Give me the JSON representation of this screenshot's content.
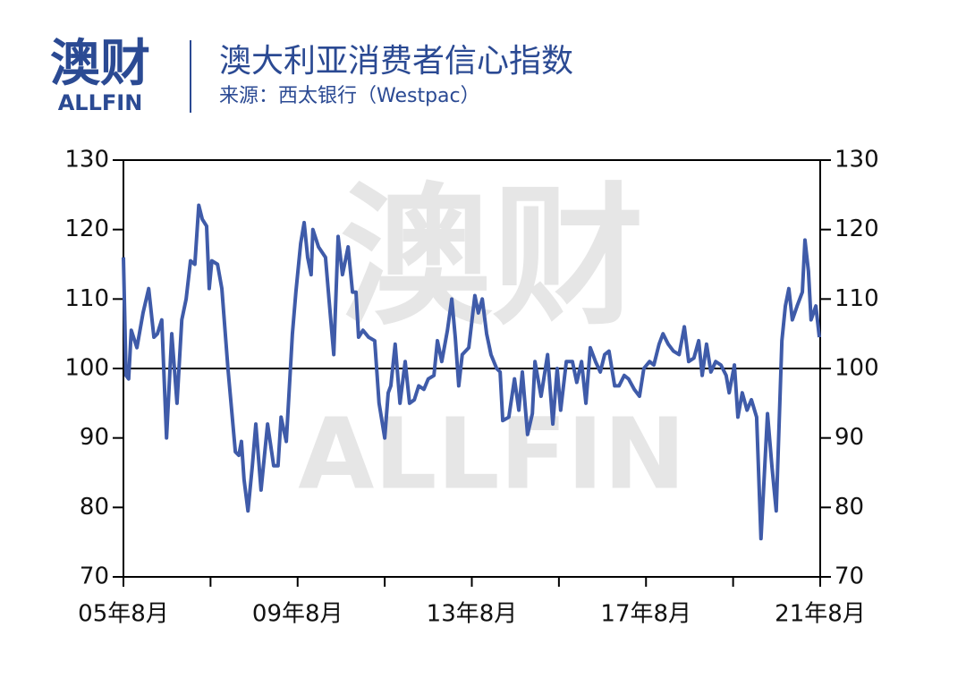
{
  "logo": {
    "name": "澳财",
    "sub": "ALLFIN"
  },
  "chart_data": {
    "type": "line",
    "title": "澳大利亚消费者信心指数",
    "subtitle": "来源：西太银行（Westpac）",
    "x": [
      2005.58,
      2005.64,
      2005.7,
      2005.76,
      2005.89,
      2006.03,
      2006.16,
      2006.28,
      2006.36,
      2006.46,
      2006.57,
      2006.69,
      2006.81,
      2006.92,
      2007.02,
      2007.12,
      2007.22,
      2007.31,
      2007.39,
      2007.49,
      2007.55,
      2007.61,
      2007.74,
      2007.84,
      2007.98,
      2008.15,
      2008.23,
      2008.29,
      2008.35,
      2008.44,
      2008.54,
      2008.62,
      2008.74,
      2008.89,
      2009.03,
      2009.13,
      2009.2,
      2009.32,
      2009.46,
      2009.54,
      2009.65,
      2009.73,
      2009.81,
      2009.89,
      2009.93,
      2010.06,
      2010.22,
      2010.3,
      2010.41,
      2010.51,
      2010.61,
      2010.74,
      2010.84,
      2010.92,
      2010.98,
      2011.08,
      2011.21,
      2011.35,
      2011.45,
      2011.58,
      2011.66,
      2011.72,
      2011.82,
      2011.93,
      2012.05,
      2012.15,
      2012.26,
      2012.36,
      2012.48,
      2012.58,
      2012.71,
      2012.79,
      2012.89,
      2013.02,
      2013.12,
      2013.2,
      2013.28,
      2013.36,
      2013.51,
      2013.65,
      2013.73,
      2013.82,
      2013.92,
      2014.02,
      2014.15,
      2014.23,
      2014.29,
      2014.43,
      2014.56,
      2014.66,
      2014.74,
      2014.86,
      2014.97,
      2015.03,
      2015.17,
      2015.32,
      2015.44,
      2015.54,
      2015.62,
      2015.75,
      2015.89,
      2015.99,
      2016.1,
      2016.2,
      2016.3,
      2016.42,
      2016.53,
      2016.63,
      2016.73,
      2016.86,
      2016.96,
      2017.08,
      2017.18,
      2017.31,
      2017.43,
      2017.53,
      2017.66,
      2017.76,
      2017.88,
      2017.97,
      2018.09,
      2018.21,
      2018.34,
      2018.46,
      2018.56,
      2018.68,
      2018.79,
      2018.87,
      2018.97,
      2019.07,
      2019.18,
      2019.3,
      2019.42,
      2019.49,
      2019.61,
      2019.69,
      2019.79,
      2019.9,
      2020.0,
      2020.12,
      2020.22,
      2020.37,
      2020.47,
      2020.57,
      2020.7,
      2020.78,
      2020.86,
      2020.94,
      2021.05,
      2021.17,
      2021.23,
      2021.31,
      2021.37,
      2021.48,
      2021.56
    ],
    "series": [
      {
        "color": "#3f5ba9",
        "values": [
          116,
          99,
          98.5,
          105.5,
          103,
          108,
          111.5,
          104.5,
          105,
          107,
          90,
          105,
          95,
          107,
          110,
          115.5,
          115,
          123.5,
          121.5,
          120.5,
          111.5,
          115.5,
          115,
          111.5,
          100,
          88,
          87.5,
          89.5,
          84,
          79.5,
          86,
          92,
          82.5,
          92,
          86,
          86,
          93,
          89.5,
          105,
          111,
          118,
          121,
          116,
          113.5,
          120,
          117.5,
          116,
          110,
          102,
          119,
          113.5,
          117.5,
          111,
          111,
          104.5,
          105.5,
          104.5,
          104,
          95,
          90,
          96.5,
          97.5,
          103.5,
          95,
          101,
          95,
          95.5,
          97.5,
          97,
          98.5,
          99,
          104,
          101,
          105.5,
          110,
          104.5,
          97.5,
          102,
          103,
          110.5,
          108,
          110,
          105,
          102,
          100,
          99.5,
          92.5,
          93,
          98.5,
          94,
          99.5,
          90.5,
          93.5,
          101,
          96,
          102,
          92,
          100,
          94,
          101,
          101,
          98,
          101,
          95,
          103,
          101,
          99.5,
          102,
          102.5,
          97.5,
          97.5,
          99,
          98.5,
          97,
          96,
          100,
          101,
          100.5,
          103.5,
          105,
          103.5,
          102.5,
          102,
          106,
          101,
          101.5,
          104,
          99,
          103.5,
          99.5,
          101,
          100.5,
          99,
          96.5,
          100.5,
          93,
          96.5,
          94,
          95.5,
          93,
          75.5,
          93.5,
          86,
          79.5,
          104,
          109,
          111.5,
          107,
          109,
          111,
          118.5,
          114,
          107,
          109,
          104.5
        ]
      }
    ],
    "xlim": [
      2005.58,
      2021.58
    ],
    "xticks": [
      {
        "value": 2005.58,
        "label": "05年8月"
      },
      {
        "value": 2009.58,
        "label": "09年8月"
      },
      {
        "value": 2013.58,
        "label": "13年8月"
      },
      {
        "value": 2017.58,
        "label": "17年8月"
      },
      {
        "value": 2021.58,
        "label": "21年8月"
      }
    ],
    "xminor_ticks": [
      2007.58,
      2011.58,
      2015.58,
      2019.58
    ],
    "ylim": [
      70,
      130
    ],
    "yticks": [
      70,
      80,
      90,
      100,
      110,
      120,
      130
    ],
    "y2lim": [
      70,
      130
    ],
    "y2ticks": [
      70,
      80,
      90,
      100,
      110,
      120,
      130
    ],
    "reference_line": 100
  }
}
